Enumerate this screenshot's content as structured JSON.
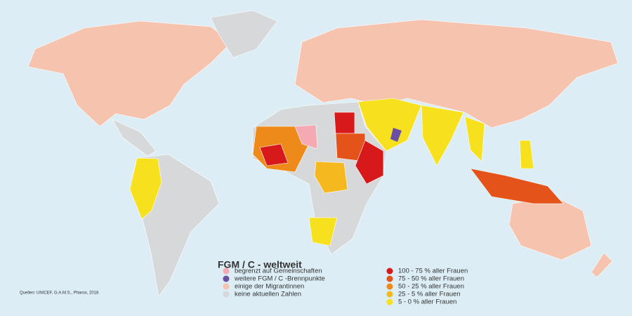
{
  "title": "FGM / C - weltweit",
  "source": "Quellen: UNICEF, G.A.M.S., Pharos, 2018",
  "legend_left": [
    {
      "label": "begrenzt auf Gemeinschaften",
      "color": "#f4a9b3"
    },
    {
      "label": "weitere FGM / C -Brennpunkte",
      "color": "#6a4fa3"
    },
    {
      "label": "einige der Migrantinnen",
      "color": "#f6c3ae"
    },
    {
      "label": "keine aktuellen Zahlen",
      "color": "#d7d8da"
    }
  ],
  "legend_right": [
    {
      "label": "100 - 75 % aller Frauen",
      "color": "#d7191c"
    },
    {
      "label": "75 - 50 % aller Frauen",
      "color": "#e4541a"
    },
    {
      "label": "50 - 25 % aller Frauen",
      "color": "#ee8a1a"
    },
    {
      "label": "25 - 5   % aller Frauen",
      "color": "#f5b81e"
    },
    {
      "label": "5 - 0   % aller Frauen",
      "color": "#f7e11e"
    }
  ]
}
